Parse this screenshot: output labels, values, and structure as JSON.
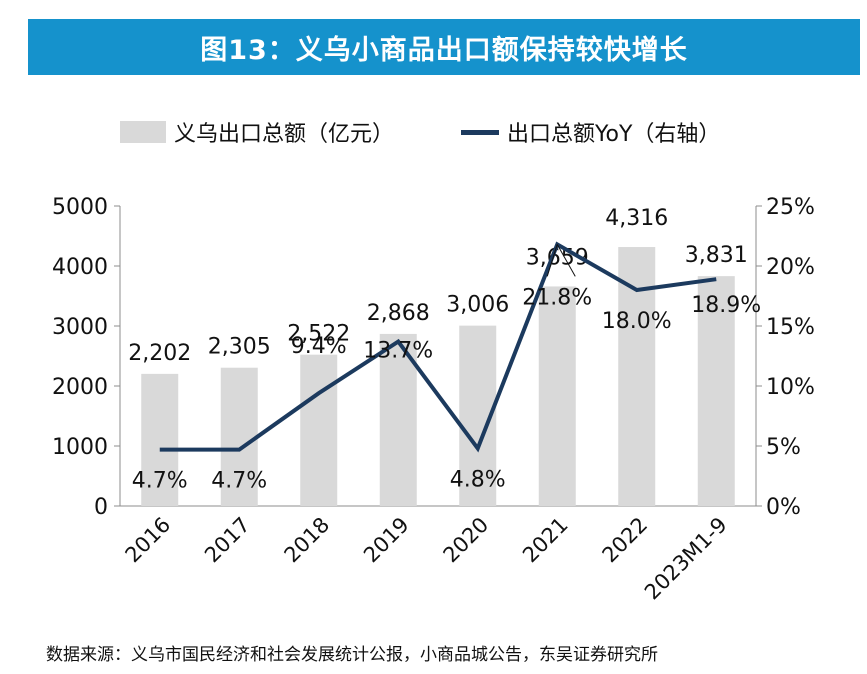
{
  "banner": {
    "title": "图13：义乌小商品出口额保持较快增长"
  },
  "source_note": "数据来源：义乌市国民经济和社会发展统计公报，小商品城公告，东吴证券研究所",
  "chart_data": {
    "type": "bar",
    "categories": [
      "2016",
      "2017",
      "2018",
      "2019",
      "2020",
      "2021",
      "2022",
      "2023M1-9"
    ],
    "series": [
      {
        "name": "义乌出口总额（亿元）",
        "type": "bar",
        "axis": "left",
        "values": [
          2202,
          2305,
          2522,
          2868,
          3006,
          3659,
          4316,
          3831
        ],
        "labels": [
          "2,202",
          "2,305",
          "2,522",
          "2,868",
          "3,006",
          "3,659",
          "4,316",
          "3,831"
        ],
        "color": "#d9d9d9"
      },
      {
        "name": "出口总额YoY（右轴）",
        "type": "line",
        "axis": "right",
        "values": [
          4.7,
          4.7,
          9.4,
          13.7,
          4.8,
          21.8,
          18.0,
          18.9
        ],
        "labels": [
          "4.7%",
          "4.7%",
          "9.4%",
          "13.7%",
          "4.8%",
          "21.8%",
          "18.0%",
          "18.9%"
        ],
        "color": "#1c3a5e"
      }
    ],
    "y_left": {
      "min": 0,
      "max": 5000,
      "ticks": [
        0,
        1000,
        2000,
        3000,
        4000,
        5000
      ],
      "tick_labels": [
        "0",
        "1000",
        "2000",
        "3000",
        "4000",
        "5000"
      ]
    },
    "y_right": {
      "min": 0,
      "max": 25,
      "ticks": [
        0,
        5,
        10,
        15,
        20,
        25
      ],
      "tick_labels": [
        "0%",
        "5%",
        "10%",
        "15%",
        "20%",
        "25%"
      ]
    },
    "grid": false,
    "legend_position": "top"
  }
}
